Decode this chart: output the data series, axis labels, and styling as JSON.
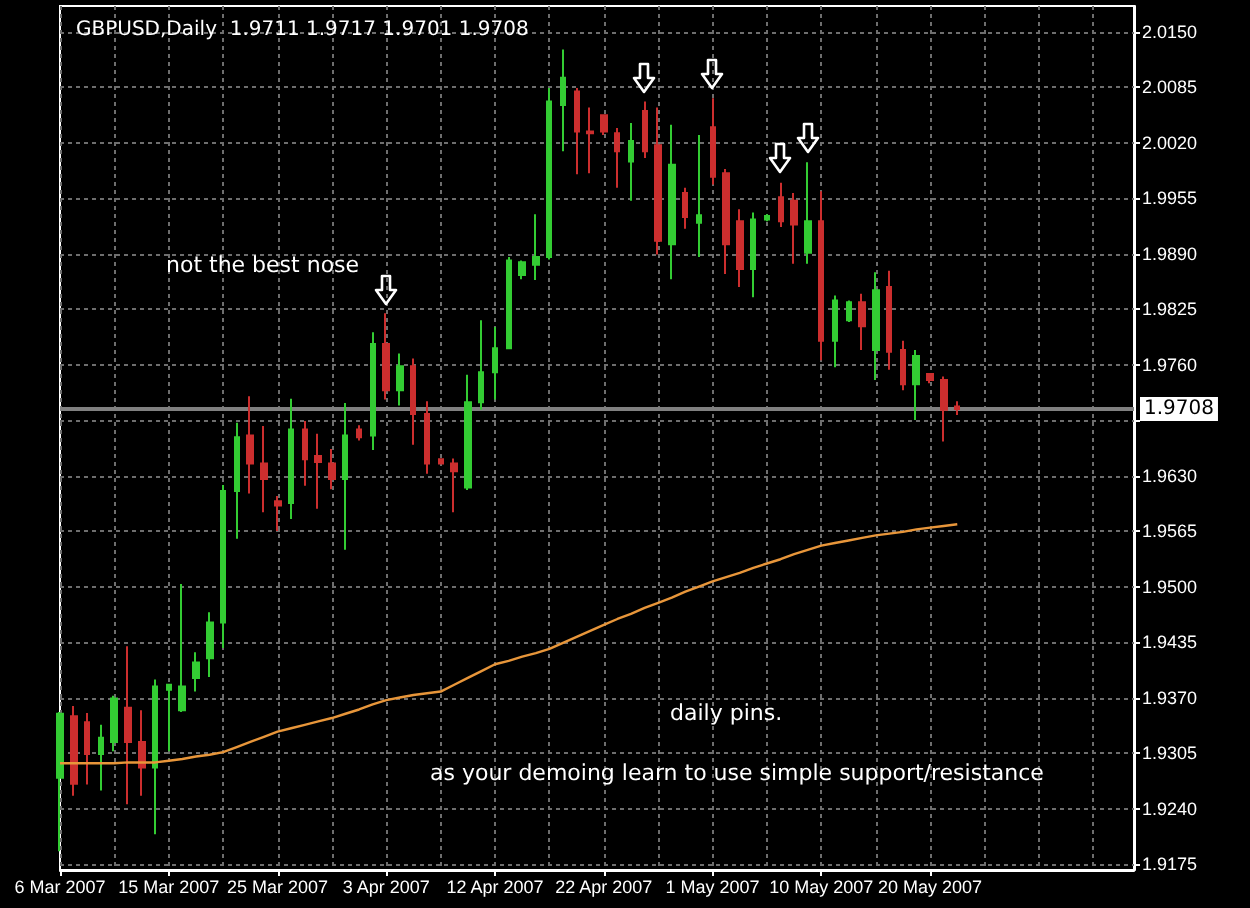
{
  "chart_data": {
    "type": "candlestick",
    "title": "GBPUSD,Daily  1.9711 1.9717 1.9701 1.9708",
    "categories": [
      "6 Mar 2007",
      null,
      null,
      null,
      null,
      null,
      null,
      null,
      "15 Mar 2007",
      null,
      null,
      null,
      null,
      null,
      null,
      null,
      "25 Mar 2007",
      null,
      null,
      null,
      null,
      null,
      null,
      null,
      "3 Apr 2007",
      null,
      null,
      null,
      null,
      null,
      null,
      null,
      "12 Apr 2007",
      null,
      null,
      null,
      null,
      null,
      null,
      null,
      "22 Apr 2007",
      null,
      null,
      null,
      null,
      null,
      null,
      null,
      "1 May 2007",
      null,
      null,
      null,
      null,
      null,
      null,
      null,
      "10 May 2007",
      null,
      null,
      null,
      null,
      null,
      null,
      null,
      "20 May 2007",
      null,
      null
    ],
    "series": [
      {
        "type": "candlestick",
        "colors": [
          "#33cc33",
          "#cc2e2e",
          "#cc2e2e",
          "#33cc33",
          "#33cc33",
          "#cc2e2e",
          "#cc2e2e",
          "#33cc33",
          "#33cc33",
          "#33cc33",
          "#33cc33",
          "#33cc33",
          "#33cc33",
          "#33cc33",
          "#cc2e2e",
          "#cc2e2e",
          "#cc2e2e",
          "#33cc33",
          "#cc2e2e",
          "#cc2e2e",
          "#cc2e2e",
          "#33cc33",
          "#cc2e2e",
          "#33cc33",
          "#cc2e2e",
          "#33cc33",
          "#cc2e2e",
          "#cc2e2e",
          "#cc2e2e",
          "#cc2e2e",
          "#33cc33",
          "#33cc33",
          "#33cc33",
          "#33cc33",
          "#33cc33",
          "#33cc33",
          "#33cc33",
          "#33cc33",
          "#cc2e2e",
          "#cc2e2e",
          "#cc2e2e",
          "#cc2e2e",
          "#33cc33",
          "#cc2e2e",
          "#cc2e2e",
          "#33cc33",
          "#cc2e2e",
          "#33cc33",
          "#cc2e2e",
          "#cc2e2e",
          "#cc2e2e",
          "#33cc33",
          "#33cc33",
          "#cc2e2e",
          "#cc2e2e",
          "#33cc33",
          "#cc2e2e",
          "#33cc33",
          "#33cc33",
          "#cc2e2e",
          "#33cc33",
          "#cc2e2e",
          "#cc2e2e",
          "#33cc33",
          "#cc2e2e",
          "#cc2e2e",
          "#cc2e2e"
        ],
        "ohlc": [
          [
            1.9276,
            1.9353,
            1.919,
            1.9351
          ],
          [
            1.9348,
            1.936,
            1.9255,
            1.9269
          ],
          [
            1.9341,
            1.9352,
            1.9268,
            1.9304
          ],
          [
            1.9304,
            1.9338,
            1.9261,
            1.9323
          ],
          [
            1.9318,
            1.9372,
            1.9307,
            1.9369
          ],
          [
            1.9358,
            1.943,
            1.9245,
            1.9318
          ],
          [
            1.9318,
            1.9355,
            1.9255,
            1.9288
          ],
          [
            1.9288,
            1.9391,
            1.921,
            1.9383
          ],
          [
            1.9379,
            1.9385,
            1.9307,
            1.9385
          ],
          [
            1.9355,
            1.9503,
            1.9353,
            1.9383
          ],
          [
            1.9393,
            1.9423,
            1.9377,
            1.9411
          ],
          [
            1.9416,
            1.947,
            1.9394,
            1.9458
          ],
          [
            1.9458,
            1.9619,
            1.9428,
            1.9612
          ],
          [
            1.9612,
            1.9692,
            1.9556,
            1.9675
          ],
          [
            1.9677,
            1.9723,
            1.9609,
            1.9644
          ],
          [
            1.9644,
            1.9688,
            1.9587,
            1.9626
          ],
          [
            1.96,
            1.9606,
            1.9565,
            1.9595
          ],
          [
            1.9598,
            1.972,
            1.9579,
            1.9684
          ],
          [
            1.9684,
            1.9694,
            1.9618,
            1.9649
          ],
          [
            1.9653,
            1.9679,
            1.9591,
            1.9646
          ],
          [
            1.9644,
            1.9661,
            1.9614,
            1.9626
          ],
          [
            1.9626,
            1.9715,
            1.9543,
            1.9677
          ],
          [
            1.9684,
            1.9689,
            1.9671,
            1.9675
          ],
          [
            1.9677,
            1.9798,
            1.966,
            1.9784
          ],
          [
            1.9784,
            1.982,
            1.9719,
            1.973
          ],
          [
            1.973,
            1.9773,
            1.9712,
            1.9758
          ],
          [
            1.9758,
            1.9767,
            1.9666,
            1.9702
          ],
          [
            1.9702,
            1.9717,
            1.9632,
            1.9644
          ],
          [
            1.9649,
            1.9649,
            1.9643,
            1.9644
          ],
          [
            1.9644,
            1.965,
            1.9587,
            1.9635
          ],
          [
            1.9616,
            1.9748,
            1.9613,
            1.9716
          ],
          [
            1.9716,
            1.9812,
            1.9707,
            1.9751
          ],
          [
            1.9751,
            1.9804,
            1.9719,
            1.9779
          ],
          [
            1.9779,
            1.9886,
            1.9779,
            1.9882
          ],
          [
            1.9865,
            1.9882,
            1.986,
            1.988
          ],
          [
            1.9877,
            1.9936,
            1.9859,
            1.9886
          ],
          [
            1.9886,
            2.0084,
            1.9883,
            2.0068
          ],
          [
            2.0064,
            2.0129,
            2.001,
            2.0096
          ],
          [
            2.008,
            2.0084,
            1.9983,
            2.0033
          ],
          [
            2.0033,
            2.0061,
            1.9984,
            2.0031
          ],
          [
            2.0052,
            2.0053,
            2.0029,
            2.0033
          ],
          [
            2.0031,
            2.0037,
            1.9967,
            2.001
          ],
          [
            1.9998,
            2.0043,
            1.9952,
            2.0022
          ],
          [
            2.0057,
            2.0068,
            2.0002,
            2.001
          ],
          [
            2.0017,
            2.0061,
            1.9889,
            1.9905
          ],
          [
            1.9901,
            2.0041,
            1.986,
            1.9994
          ],
          [
            1.9961,
            1.9967,
            1.9919,
            1.9933
          ],
          [
            1.9926,
            2.0029,
            1.9886,
            1.9935
          ],
          [
            2.0038,
            2.0072,
            1.9971,
            1.998
          ],
          [
            1.9984,
            1.9989,
            1.9866,
            1.9901
          ],
          [
            1.9928,
            1.9942,
            1.9851,
            1.9872
          ],
          [
            1.9872,
            1.9938,
            1.9839,
            1.993
          ],
          [
            1.993,
            1.9936,
            1.9928,
            1.9934
          ],
          [
            1.9956,
            1.9973,
            1.9921,
            1.9928
          ],
          [
            1.9952,
            1.9961,
            1.9878,
            1.9924
          ],
          [
            1.9891,
            1.9997,
            1.9878,
            1.9928
          ],
          [
            1.9928,
            1.9963,
            1.9765,
            1.9788
          ],
          [
            1.9788,
            1.9841,
            1.9757,
            1.9835
          ],
          [
            1.9812,
            1.9835,
            1.981,
            1.9833
          ],
          [
            1.9833,
            1.9843,
            1.9777,
            1.9805
          ],
          [
            1.9777,
            1.9868,
            1.9742,
            1.9847
          ],
          [
            1.9851,
            1.987,
            1.9754,
            1.9775
          ],
          [
            1.9777,
            1.9788,
            1.973,
            1.9737
          ],
          [
            1.9737,
            1.9777,
            1.9695,
            1.977
          ],
          [
            1.9749,
            1.9749,
            1.9738,
            1.9742
          ],
          [
            1.9742,
            1.9746,
            1.967,
            1.9707
          ],
          [
            1.9711,
            1.9717,
            1.9701,
            1.9708
          ]
        ]
      },
      {
        "type": "line",
        "color": "#e8963a",
        "values": [
          1.9293,
          1.9293,
          1.9293,
          1.9293,
          1.9293,
          1.9294,
          1.9294,
          1.9294,
          1.9296,
          1.9298,
          1.9301,
          1.9303,
          1.9306,
          1.9312,
          1.9318,
          1.9324,
          1.933,
          1.9334,
          1.9338,
          1.9342,
          1.9346,
          1.9351,
          1.9356,
          1.9362,
          1.9367,
          1.937,
          1.9373,
          1.9375,
          1.9377,
          1.9385,
          1.9393,
          1.9401,
          1.9409,
          1.9413,
          1.9418,
          1.9422,
          1.9427,
          1.9434,
          1.9441,
          1.9448,
          1.9455,
          1.9462,
          1.9468,
          1.9475,
          1.9481,
          1.9487,
          1.9494,
          1.95,
          1.9506,
          1.9511,
          1.9516,
          1.9522,
          1.9527,
          1.9532,
          1.9538,
          1.9543,
          1.9548,
          1.9551,
          1.9554,
          1.9557,
          1.956,
          1.9562,
          1.9564,
          1.9567,
          1.9569,
          1.9571,
          1.9573
        ]
      }
    ],
    "ylim": [
      1.9168,
      2.018
    ],
    "yticks": [
      1.9175,
      {
        "value": 1.924,
        "label": "1.9240"
      },
      1.9305,
      {
        "value": 1.937,
        "label": "1.9370"
      },
      1.9435,
      {
        "value": 1.95,
        "label": "1.9500"
      },
      1.9565,
      {
        "value": 1.963,
        "label": "1.9630"
      },
      {
        "value": 1.9695,
        "label": null
      },
      {
        "value": 1.976,
        "label": "1.9760"
      },
      1.9825,
      {
        "value": 1.989,
        "label": "1.9890"
      },
      1.9955,
      {
        "value": 2.002,
        "label": "2.0020"
      },
      2.0085,
      {
        "value": 2.015,
        "label": "2.0150"
      }
    ],
    "ref_lines": [
      {
        "axis": "y",
        "value": 1.9708,
        "label": "1.9708",
        "color": "#808080"
      }
    ],
    "annotations": [
      "not the best nose",
      "daily pins.",
      "as your demoing learn to use simple support/resistance"
    ],
    "grid": true,
    "marker": "none"
  }
}
